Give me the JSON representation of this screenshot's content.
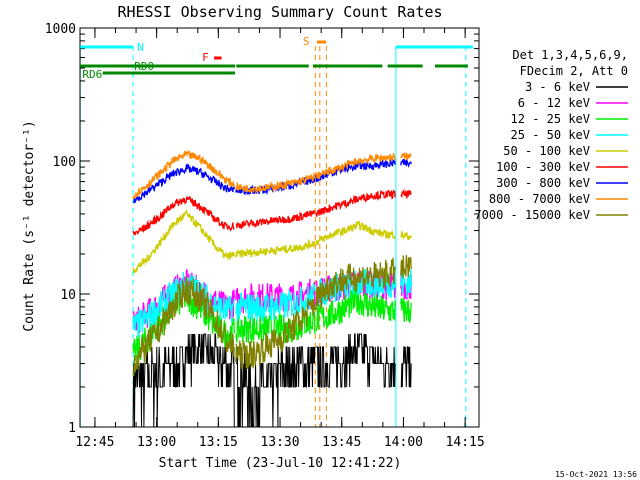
{
  "chart_data": {
    "type": "line",
    "title": "RHESSI Observing Summary Count Rates",
    "xlabel": "Start Time (23-Jul-10 12:41:22)",
    "ylabel": "Count Rate (s⁻¹ detector⁻¹)",
    "x_unit": "minutes after 12:41:22",
    "xlim": [
      0,
      97
    ],
    "ylim": [
      1,
      1000
    ],
    "yscale": "log",
    "x_ticks": [
      {
        "label": "12:45",
        "value": 3.63
      },
      {
        "label": "13:00",
        "value": 18.63
      },
      {
        "label": "13:15",
        "value": 33.63
      },
      {
        "label": "13:30",
        "value": 48.63
      },
      {
        "label": "13:45",
        "value": 63.63
      },
      {
        "label": "14:00",
        "value": 78.63
      },
      {
        "label": "14:15",
        "value": 93.63
      }
    ],
    "y_ticks": [
      {
        "label": "1",
        "value": 1
      },
      {
        "label": "10",
        "value": 10
      },
      {
        "label": "100",
        "value": 100
      },
      {
        "label": "1000",
        "value": 1000
      }
    ],
    "legend_header": [
      "Det 1,3,4,5,6,9,",
      "FDecim 2, Att 0"
    ],
    "legend_position": "right",
    "series": [
      {
        "name": "3 - 6 keV",
        "color": "#000000",
        "values": [
          2,
          2.5,
          2.5,
          3,
          3.5,
          4,
          3.5,
          3,
          2.5,
          2,
          2,
          2.5,
          3,
          3,
          3,
          3,
          3.5,
          4,
          3.5,
          3,
          3,
          3
        ]
      },
      {
        "name": "6 - 12 keV",
        "color": "#ff00ff",
        "values": [
          6,
          7,
          8.5,
          10.5,
          12,
          10.5,
          9,
          8,
          9,
          9.5,
          9.5,
          9.5,
          9.5,
          10,
          10.5,
          11,
          11.5,
          12,
          11.5,
          11.5,
          11.5,
          11.5
        ]
      },
      {
        "name": "12 - 25 keV",
        "color": "#00ee00",
        "values": [
          3.5,
          4.5,
          6,
          8,
          9.5,
          8,
          6,
          5,
          5.5,
          5.5,
          5.5,
          5.5,
          5.5,
          6,
          6.5,
          7,
          8,
          9,
          8,
          7.5,
          7.5,
          7.5
        ]
      },
      {
        "name": "25 - 50 keV",
        "color": "#00ffff",
        "values": [
          5.5,
          6.5,
          8,
          10,
          12,
          10.5,
          8.5,
          7.5,
          8,
          8,
          8,
          8,
          8.5,
          9,
          10,
          11,
          11.5,
          12,
          12,
          12,
          12,
          12
        ]
      },
      {
        "name": "50 - 100 keV",
        "color": "#cccc00",
        "values": [
          15,
          18,
          24,
          33,
          40,
          32,
          24,
          19,
          20,
          20.5,
          21,
          21.5,
          22,
          23,
          25,
          28,
          30,
          33,
          30,
          28,
          28,
          27
        ]
      },
      {
        "name": "100 - 300 keV",
        "color": "#ff0000",
        "values": [
          28,
          32,
          38,
          47,
          52,
          46,
          38,
          32,
          33,
          34,
          35,
          36,
          37,
          39,
          41,
          45,
          48,
          52,
          55,
          56,
          56,
          56
        ]
      },
      {
        "name": "300 - 800 keV",
        "color": "#0000ff",
        "values": [
          50,
          58,
          68,
          80,
          88,
          83,
          72,
          62,
          60,
          60,
          61,
          63,
          66,
          70,
          75,
          82,
          88,
          92,
          92,
          95,
          97,
          95
        ]
      },
      {
        "name": "800 - 7000 keV",
        "color": "#ff8800",
        "values": [
          55,
          65,
          80,
          100,
          112,
          105,
          88,
          72,
          63,
          62,
          63,
          65,
          68,
          72,
          78,
          85,
          92,
          100,
          104,
          106,
          108,
          108
        ]
      },
      {
        "name": "7000 - 15000 keV",
        "color": "#808000",
        "values": [
          3,
          4,
          5.5,
          8,
          11,
          9.5,
          7,
          4.5,
          3.5,
          3.5,
          4,
          4.5,
          5.5,
          7,
          9.5,
          12,
          13,
          13.5,
          13.5,
          14,
          15,
          15.5
        ]
      }
    ],
    "flags": [
      {
        "label": "N",
        "color": "#00ffff"
      },
      {
        "label": "RD0",
        "color": "#008800"
      },
      {
        "label": "RD6",
        "color": "#008800"
      },
      {
        "label": "F",
        "color": "#ff0000"
      },
      {
        "label": "S",
        "color": "#ff8800"
      }
    ],
    "timestamp": "15-Oct-2021 13:56"
  }
}
